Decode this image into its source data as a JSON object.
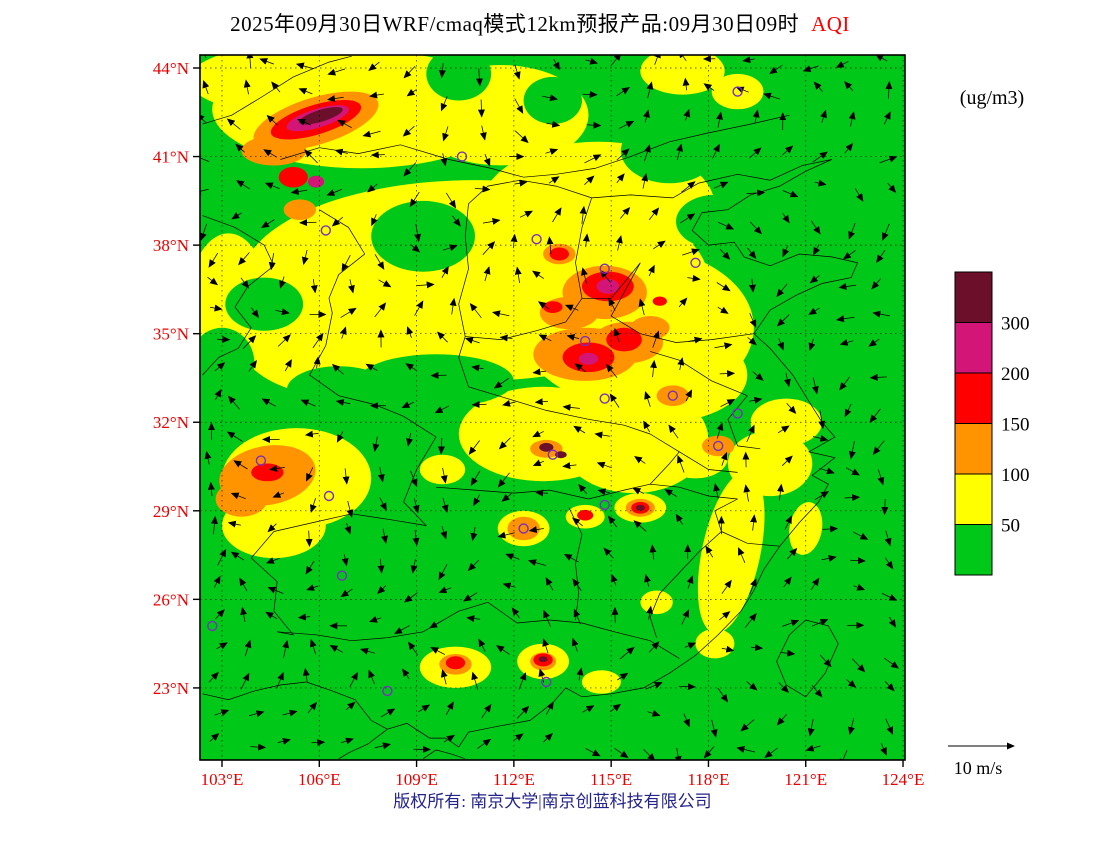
{
  "title": {
    "main": "2025年09月30日WRF/cmaq模式12km预报产品:09月30日09时",
    "pollutant": "AQI"
  },
  "colorbar": {
    "unit": "(ug/m3)",
    "segments": [
      {
        "range": "300+",
        "color": "#6B0F2A"
      },
      {
        "range": "200-300",
        "color": "#D31578"
      },
      {
        "range": "150-200",
        "color": "#FF0000"
      },
      {
        "range": "100-150",
        "color": "#FF9400"
      },
      {
        "range": "50-100",
        "color": "#FFFF00"
      },
      {
        "range": "0-50",
        "color": "#00C818"
      }
    ],
    "tick_labels": [
      "300",
      "200",
      "150",
      "100",
      "50"
    ]
  },
  "axes": {
    "lon_labels": [
      "103°E",
      "106°E",
      "109°E",
      "112°E",
      "115°E",
      "118°E",
      "121°E",
      "124°E"
    ],
    "lat_labels": [
      "44°N",
      "41°N",
      "38°N",
      "35°N",
      "32°N",
      "29°N",
      "26°N",
      "23°N"
    ]
  },
  "wind_legend": {
    "label": "10 m/s"
  },
  "footer": {
    "text": "版权所有: 南京大学|南京创蓝科技有限公司"
  },
  "chart_data": {
    "type": "heatmap",
    "variable": "AQI",
    "unit": "ug/m3",
    "model": "WRF/cmaq 12km",
    "forecast_issue_date": "2025年09月30日",
    "valid_time": "09月30日09时",
    "lon_range": [
      102.3,
      124.1
    ],
    "lat_range": [
      20.6,
      44.4
    ],
    "lon_ticks": [
      103,
      106,
      109,
      112,
      115,
      118,
      121,
      124
    ],
    "lat_ticks": [
      44,
      41,
      38,
      35,
      32,
      29,
      26,
      23
    ],
    "levels": [
      {
        "range": "0-50",
        "color": "#00C818"
      },
      {
        "range": "50-100",
        "color": "#FFFF00"
      },
      {
        "range": "100-150",
        "color": "#FF9400"
      },
      {
        "range": "150-200",
        "color": "#FF0000"
      },
      {
        "range": "200-300",
        "color": "#D31578"
      },
      {
        "range": "300+",
        "color": "#6B0F2A"
      }
    ],
    "regions": [
      [
        107.3,
        42.6,
        4.6,
        2.0,
        0,
        "50-100"
      ],
      [
        104.6,
        43.6,
        2.6,
        1.1,
        0,
        "50-100"
      ],
      [
        111.6,
        42.4,
        2.7,
        1.7,
        0,
        "50-100"
      ],
      [
        110.8,
        36.8,
        7.2,
        3.4,
        0,
        "50-100"
      ],
      [
        114.6,
        39.3,
        3.6,
        2.2,
        0,
        "50-100"
      ],
      [
        107.6,
        34.6,
        4.0,
        1.9,
        0,
        "50-100"
      ],
      [
        115.8,
        35.2,
        3.6,
        2.7,
        0,
        "50-100"
      ],
      [
        112.9,
        31.6,
        2.6,
        1.6,
        0,
        "50-100"
      ],
      [
        115.7,
        31.4,
        2.3,
        1.8,
        0,
        "50-100"
      ],
      [
        103.2,
        36.2,
        1.2,
        2.2,
        0,
        "50-100"
      ],
      [
        105.3,
        30.1,
        2.3,
        1.7,
        0,
        "50-100"
      ],
      [
        104.6,
        28.5,
        1.6,
        1.1,
        0,
        "50-100"
      ],
      [
        118.7,
        27.6,
        0.9,
        2.8,
        12,
        "50-100"
      ],
      [
        119.9,
        30.6,
        1.3,
        1.1,
        0,
        "50-100"
      ],
      [
        120.4,
        32.0,
        1.1,
        0.8,
        0,
        "50-100"
      ],
      [
        116.6,
        33.6,
        2.6,
        1.6,
        0,
        "50-100"
      ],
      [
        110.2,
        23.7,
        1.1,
        0.7,
        0,
        "50-100"
      ],
      [
        112.9,
        23.9,
        0.8,
        0.6,
        0,
        "50-100"
      ],
      [
        114.7,
        23.2,
        0.6,
        0.4,
        0,
        "50-100"
      ],
      [
        113.0,
        31.1,
        0.9,
        0.5,
        0,
        "50-100"
      ],
      [
        115.9,
        29.1,
        0.8,
        0.5,
        0,
        "50-100"
      ],
      [
        114.2,
        28.8,
        0.6,
        0.4,
        0,
        "50-100"
      ],
      [
        112.3,
        28.4,
        0.8,
        0.6,
        0,
        "50-100"
      ],
      [
        116.4,
        25.9,
        0.5,
        0.4,
        0,
        "50-100"
      ],
      [
        118.2,
        24.5,
        0.6,
        0.5,
        0,
        "50-100"
      ],
      [
        121.0,
        28.4,
        0.5,
        0.9,
        10,
        "50-100"
      ],
      [
        109.8,
        30.4,
        0.7,
        0.5,
        0,
        "50-100"
      ],
      [
        117.2,
        43.9,
        1.3,
        0.8,
        0,
        "50-100"
      ],
      [
        118.9,
        43.2,
        0.8,
        0.6,
        0,
        "50-100"
      ],
      [
        117.6,
        30.8,
        1.0,
        0.7,
        0,
        "50-100"
      ],
      [
        109.2,
        38.3,
        1.6,
        1.2,
        0,
        "0-50"
      ],
      [
        104.3,
        36.0,
        1.2,
        0.9,
        0,
        "0-50"
      ],
      [
        109.6,
        33.4,
        2.4,
        0.9,
        0,
        "0-50"
      ],
      [
        106.6,
        33.1,
        1.6,
        0.8,
        0,
        "0-50"
      ],
      [
        118.2,
        38.8,
        1.2,
        0.9,
        0,
        "0-50"
      ],
      [
        103.0,
        34.0,
        1.0,
        1.2,
        0,
        "0-50"
      ],
      [
        110.3,
        43.8,
        1.0,
        0.9,
        0,
        "0-50"
      ],
      [
        113.2,
        42.9,
        0.9,
        0.8,
        0,
        "0-50"
      ],
      [
        116.8,
        41.2,
        1.5,
        1.1,
        0,
        "0-50"
      ],
      [
        105.9,
        42.2,
        2.0,
        0.8,
        -17,
        "100-150"
      ],
      [
        104.6,
        41.2,
        1.0,
        0.5,
        0,
        "100-150"
      ],
      [
        114.8,
        36.4,
        1.3,
        0.9,
        0,
        "100-150"
      ],
      [
        114.2,
        34.3,
        1.6,
        0.9,
        0,
        "100-150"
      ],
      [
        115.5,
        34.7,
        1.1,
        0.7,
        0,
        "100-150"
      ],
      [
        113.7,
        35.7,
        0.9,
        0.55,
        0,
        "100-150"
      ],
      [
        104.4,
        30.2,
        1.5,
        1.0,
        -10,
        "100-150"
      ],
      [
        103.6,
        29.4,
        0.8,
        0.6,
        0,
        "100-150"
      ],
      [
        112.3,
        28.4,
        0.5,
        0.4,
        0,
        "100-150"
      ],
      [
        116.9,
        32.9,
        0.5,
        0.35,
        0,
        "100-150"
      ],
      [
        118.3,
        31.2,
        0.5,
        0.35,
        0,
        "100-150"
      ],
      [
        110.2,
        23.8,
        0.5,
        0.35,
        0,
        "100-150"
      ],
      [
        115.9,
        29.1,
        0.45,
        0.3,
        0,
        "100-150"
      ],
      [
        113.0,
        31.1,
        0.5,
        0.3,
        0,
        "100-150"
      ],
      [
        113.4,
        37.7,
        0.5,
        0.35,
        0,
        "100-150"
      ],
      [
        105.4,
        39.2,
        0.5,
        0.35,
        0,
        "100-150"
      ],
      [
        116.2,
        35.2,
        0.6,
        0.4,
        0,
        "100-150"
      ],
      [
        112.9,
        23.9,
        0.4,
        0.3,
        0,
        "100-150"
      ],
      [
        105.9,
        42.25,
        1.45,
        0.5,
        -17,
        "150-200"
      ],
      [
        105.2,
        40.3,
        0.45,
        0.35,
        0,
        "150-200"
      ],
      [
        114.9,
        36.6,
        0.8,
        0.5,
        0,
        "150-200"
      ],
      [
        114.3,
        34.2,
        0.8,
        0.5,
        0,
        "150-200"
      ],
      [
        115.4,
        34.8,
        0.55,
        0.4,
        0,
        "150-200"
      ],
      [
        113.4,
        37.7,
        0.3,
        0.22,
        0,
        "150-200"
      ],
      [
        110.2,
        23.85,
        0.3,
        0.22,
        0,
        "150-200"
      ],
      [
        115.9,
        29.1,
        0.28,
        0.2,
        0,
        "150-200"
      ],
      [
        114.2,
        28.85,
        0.25,
        0.18,
        0,
        "150-200"
      ],
      [
        104.4,
        30.3,
        0.5,
        0.3,
        0,
        "150-200"
      ],
      [
        116.5,
        36.1,
        0.22,
        0.16,
        0,
        "150-200"
      ],
      [
        113.2,
        35.9,
        0.3,
        0.2,
        0,
        "150-200"
      ],
      [
        112.9,
        23.95,
        0.3,
        0.22,
        0,
        "150-200"
      ],
      [
        105.95,
        42.3,
        1.0,
        0.32,
        -17,
        "200-300"
      ],
      [
        105.9,
        40.15,
        0.25,
        0.2,
        0,
        "200-300"
      ],
      [
        114.9,
        36.6,
        0.35,
        0.25,
        0,
        "200-300"
      ],
      [
        114.3,
        34.15,
        0.3,
        0.2,
        0,
        "200-300"
      ],
      [
        106.05,
        42.38,
        0.7,
        0.2,
        -17,
        "300+"
      ],
      [
        113.0,
        31.15,
        0.22,
        0.15,
        0,
        "300+"
      ],
      [
        113.45,
        30.9,
        0.18,
        0.12,
        0,
        "300+"
      ],
      [
        115.9,
        29.1,
        0.14,
        0.1,
        0,
        "300+"
      ],
      [
        112.9,
        23.97,
        0.14,
        0.1,
        0,
        "300+"
      ]
    ],
    "city_markers": [
      [
        110.4,
        41.0
      ],
      [
        118.9,
        43.2
      ],
      [
        106.2,
        38.5
      ],
      [
        112.7,
        38.2
      ],
      [
        114.8,
        37.2
      ],
      [
        117.6,
        37.4
      ],
      [
        114.2,
        34.75
      ],
      [
        116.9,
        32.9
      ],
      [
        118.9,
        32.3
      ],
      [
        114.8,
        32.8
      ],
      [
        118.3,
        31.2
      ],
      [
        104.2,
        30.7
      ],
      [
        113.2,
        30.9
      ],
      [
        106.3,
        29.5
      ],
      [
        114.8,
        29.2
      ],
      [
        112.3,
        28.4
      ],
      [
        106.7,
        26.8
      ],
      [
        102.7,
        25.1
      ],
      [
        108.1,
        22.9
      ],
      [
        113.0,
        23.2
      ]
    ],
    "wind": {
      "reference": "10 m/s",
      "style": "arrows"
    }
  }
}
